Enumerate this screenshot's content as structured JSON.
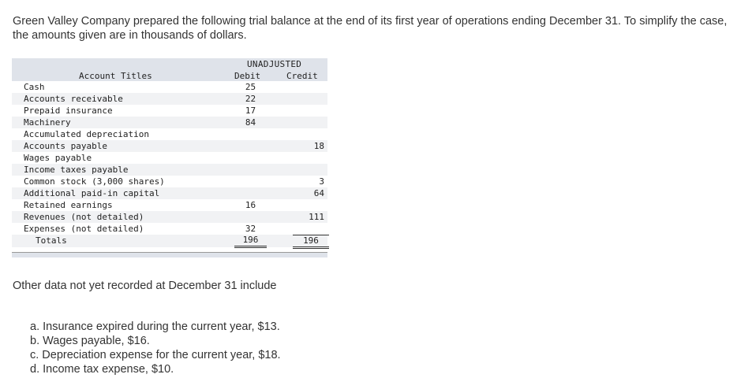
{
  "intro": "Green Valley Company prepared the following trial balance at the end of its first year of operations ending December 31. To simplify the case, the amounts given are in thousands of dollars.",
  "table": {
    "group_header": "UNADJUSTED",
    "col_title": "Account Titles",
    "col_debit": "Debit",
    "col_credit": "Credit",
    "rows": [
      {
        "name": "Cash",
        "debit": "25",
        "credit": ""
      },
      {
        "name": "Accounts receivable",
        "debit": "22",
        "credit": ""
      },
      {
        "name": "Prepaid insurance",
        "debit": "17",
        "credit": ""
      },
      {
        "name": "Machinery",
        "debit": "84",
        "credit": ""
      },
      {
        "name": "Accumulated depreciation",
        "debit": "",
        "credit": ""
      },
      {
        "name": "Accounts payable",
        "debit": "",
        "credit": "18"
      },
      {
        "name": "Wages payable",
        "debit": "",
        "credit": ""
      },
      {
        "name": "Income taxes payable",
        "debit": "",
        "credit": ""
      },
      {
        "name": "Common stock (3,000 shares)",
        "debit": "",
        "credit": "3"
      },
      {
        "name": "Additional paid-in capital",
        "debit": "",
        "credit": "64"
      },
      {
        "name": "Retained earnings",
        "debit": "16",
        "credit": ""
      },
      {
        "name": "Revenues (not detailed)",
        "debit": "",
        "credit": "111"
      },
      {
        "name": "Expenses (not detailed)",
        "debit": "32",
        "credit": ""
      }
    ],
    "totals": {
      "name": "Totals",
      "debit": "196",
      "credit": "196"
    }
  },
  "other_heading": "Other data not yet recorded at December 31 include",
  "items": [
    "a. Insurance expired during the current year, $13.",
    "b. Wages payable, $16.",
    "c. Depreciation expense for the current year, $18.",
    "d. Income tax expense, $10."
  ]
}
